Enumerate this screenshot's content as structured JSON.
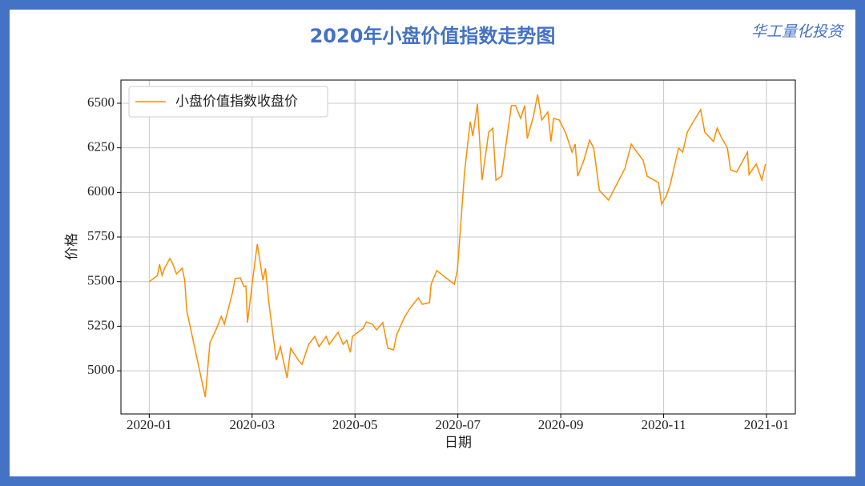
{
  "chart_data": {
    "type": "line",
    "title": "2020年小盘价值指数走势图",
    "watermark": "华工量化投资",
    "x_label": "日期",
    "y_label": "价格",
    "legend": "upper left",
    "grid": true,
    "xlim": [
      -0.55,
      12.56
    ],
    "ylim": [
      4758,
      6630
    ],
    "xticks": [
      {
        "value": 0,
        "label": "2020-01"
      },
      {
        "value": 2,
        "label": "2020-03"
      },
      {
        "value": 4,
        "label": "2020-05"
      },
      {
        "value": 6,
        "label": "2020-07"
      },
      {
        "value": 8,
        "label": "2020-09"
      },
      {
        "value": 10,
        "label": "2020-11"
      },
      {
        "value": 12,
        "label": "2021-01"
      }
    ],
    "yticks": [
      5000,
      5250,
      5500,
      5750,
      6000,
      6250,
      6500
    ],
    "x": [
      0,
      0.16,
      0.2,
      0.25,
      0.3,
      0.4,
      0.45,
      0.53,
      0.64,
      0.69,
      0.73,
      1.09,
      1.18,
      1.31,
      1.4,
      1.46,
      1.62,
      1.67,
      1.77,
      1.84,
      1.88,
      1.91,
      2.01,
      2.1,
      2.21,
      2.26,
      2.32,
      2.47,
      2.55,
      2.68,
      2.75,
      2.9,
      2.97,
      3.1,
      3.22,
      3.3,
      3.44,
      3.5,
      3.67,
      3.77,
      3.84,
      3.91,
      3.95,
      4.16,
      4.22,
      4.34,
      4.42,
      4.54,
      4.64,
      4.75,
      4.81,
      4.97,
      5.07,
      5.23,
      5.31,
      5.45,
      5.48,
      5.59,
      5.93,
      5.99,
      6.13,
      6.24,
      6.29,
      6.38,
      6.47,
      6.6,
      6.68,
      6.74,
      6.85,
      7.04,
      7.12,
      7.22,
      7.3,
      7.35,
      7.47,
      7.55,
      7.63,
      7.75,
      7.81,
      7.86,
      7.97,
      8.09,
      8.22,
      8.28,
      8.33,
      8.45,
      8.56,
      8.64,
      8.75,
      8.93,
      9.25,
      9.37,
      9.48,
      9.6,
      9.68,
      9.9,
      9.96,
      10.05,
      10.13,
      10.29,
      10.37,
      10.46,
      10.55,
      10.72,
      10.8,
      10.97,
      11.04,
      11.11,
      11.24,
      11.3,
      11.42,
      11.63,
      11.66,
      11.8,
      11.91,
      11.98
    ],
    "series": [
      {
        "name": "小盘价值指数收盘价",
        "color": "#ff8c00",
        "values": [
          5499,
          5535,
          5597,
          5535,
          5575,
          5630,
          5605,
          5543,
          5575,
          5508,
          5337,
          4852,
          5157,
          5238,
          5305,
          5261,
          5440,
          5517,
          5521,
          5472,
          5476,
          5270,
          5508,
          5710,
          5508,
          5575,
          5395,
          5059,
          5135,
          4960,
          5126,
          5059,
          5036,
          5148,
          5193,
          5135,
          5193,
          5148,
          5216,
          5148,
          5171,
          5103,
          5193,
          5238,
          5274,
          5261,
          5229,
          5270,
          5126,
          5117,
          5202,
          5305,
          5350,
          5409,
          5373,
          5382,
          5485,
          5562,
          5485,
          5562,
          6114,
          6397,
          6316,
          6496,
          6069,
          6338,
          6361,
          6069,
          6091,
          6487,
          6487,
          6415,
          6487,
          6302,
          6428,
          6549,
          6406,
          6451,
          6285,
          6415,
          6406,
          6338,
          6226,
          6271,
          6091,
          6181,
          6293,
          6249,
          6011,
          5957,
          6136,
          6271,
          6226,
          6181,
          6091,
          6055,
          5934,
          5979,
          6046,
          6249,
          6226,
          6338,
          6383,
          6464,
          6338,
          6285,
          6361,
          6316,
          6249,
          6127,
          6114,
          6226,
          6100,
          6159,
          6069,
          6159
        ]
      }
    ]
  }
}
